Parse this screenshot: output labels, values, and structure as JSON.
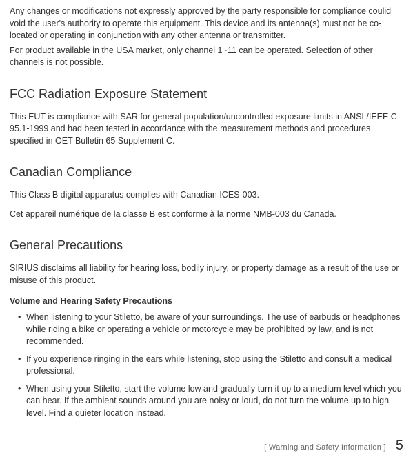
{
  "intro": {
    "p1": "Any changes or modifications not expressly approved by the party responsible for compliance coulid void the user's authority to operate this equipment. This device and its antenna(s) must not be co-located or operating in conjunction with any other antenna or transmitter.",
    "p2": "For product available in the USA market, only channel 1~11 can be operated. Selection of other channels is not possible."
  },
  "fcc": {
    "heading": "FCC Radiation Exposure Statement",
    "body": "This EUT is compliance with SAR for general population/uncontrolled exposure limits in ANSI /IEEE C 95.1-1999 and had been tested in accordance with the measurement methods and procedures specified in OET Bulletin 65 Supplement C."
  },
  "canadian": {
    "heading": "Canadian Compliance",
    "p1": "This Class B digital apparatus complies with Canadian ICES-003.",
    "p2": "Cet appareil numérique de la classe B est conforme à la norme NMB-003 du Canada."
  },
  "general": {
    "heading": "General Precautions",
    "body": "SIRIUS disclaims all liability for hearing loss, bodily injury, or property damage as a result of the use or misuse of this product.",
    "sub_heading": "Volume and Hearing Safety Precautions",
    "bullets": [
      "When listening to your Stiletto, be aware of your surroundings. The use of earbuds or headphones while riding a bike or operating a vehicle or motorcycle may be prohibited by law, and is not recommended.",
      "If you experience ringing in the ears while listening, stop using the Stiletto and consult a medical professional.",
      "When using your Stiletto, start the volume low and gradually turn it up to a medium level which you can hear. If the ambient sounds around you are noisy or loud, do not turn the volume up to high level. Find a quieter location instead."
    ]
  },
  "footer": {
    "label": "[ Warning and Safety Information ]",
    "page": "5"
  }
}
